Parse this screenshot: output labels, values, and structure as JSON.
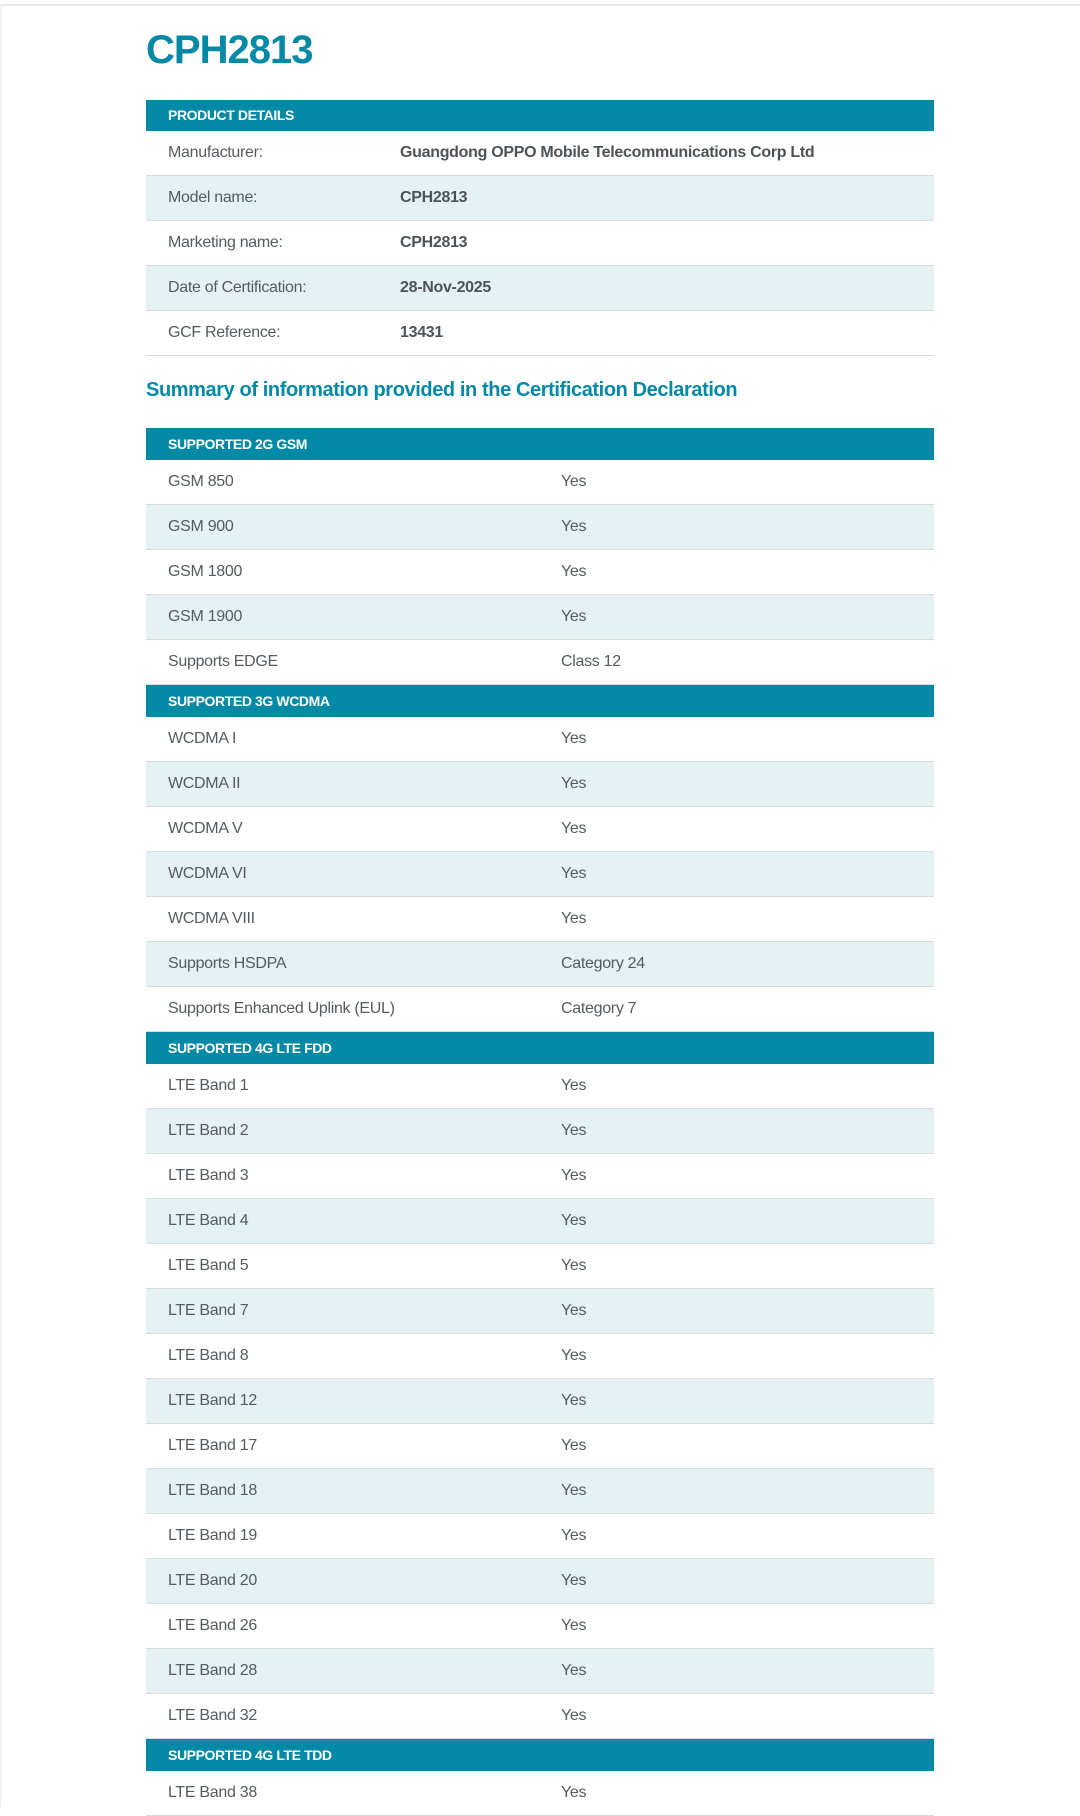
{
  "title": "CPH2813",
  "product_details": {
    "header": "PRODUCT DETAILS",
    "rows": [
      {
        "label": "Manufacturer:",
        "value": "Guangdong OPPO Mobile Telecommunications Corp Ltd"
      },
      {
        "label": "Model name:",
        "value": "CPH2813"
      },
      {
        "label": "Marketing name:",
        "value": "CPH2813"
      },
      {
        "label": "Date of Certification:",
        "value": "28-Nov-2025"
      },
      {
        "label": "GCF Reference:",
        "value": "13431"
      }
    ]
  },
  "summary_heading": "Summary of information provided in the Certification Declaration",
  "sections": [
    {
      "header": "SUPPORTED 2G GSM",
      "rows": [
        {
          "label": "GSM 850",
          "value": "Yes"
        },
        {
          "label": "GSM 900",
          "value": "Yes"
        },
        {
          "label": "GSM 1800",
          "value": "Yes"
        },
        {
          "label": "GSM 1900",
          "value": "Yes"
        },
        {
          "label": "Supports EDGE",
          "value": "Class 12"
        }
      ]
    },
    {
      "header": "SUPPORTED 3G WCDMA",
      "rows": [
        {
          "label": "WCDMA I",
          "value": "Yes"
        },
        {
          "label": "WCDMA II",
          "value": "Yes"
        },
        {
          "label": "WCDMA V",
          "value": "Yes"
        },
        {
          "label": "WCDMA VI",
          "value": "Yes"
        },
        {
          "label": "WCDMA VIII",
          "value": "Yes"
        },
        {
          "label": "Supports HSDPA",
          "value": "Category 24"
        },
        {
          "label": "Supports Enhanced Uplink (EUL)",
          "value": "Category 7"
        }
      ]
    },
    {
      "header": "SUPPORTED 4G LTE FDD",
      "rows": [
        {
          "label": "LTE Band 1",
          "value": "Yes"
        },
        {
          "label": "LTE Band 2",
          "value": "Yes"
        },
        {
          "label": "LTE Band 3",
          "value": "Yes"
        },
        {
          "label": "LTE Band 4",
          "value": "Yes"
        },
        {
          "label": "LTE Band 5",
          "value": "Yes"
        },
        {
          "label": "LTE Band 7",
          "value": "Yes"
        },
        {
          "label": "LTE Band 8",
          "value": "Yes"
        },
        {
          "label": "LTE Band 12",
          "value": "Yes"
        },
        {
          "label": "LTE Band 17",
          "value": "Yes"
        },
        {
          "label": "LTE Band 18",
          "value": "Yes"
        },
        {
          "label": "LTE Band 19",
          "value": "Yes"
        },
        {
          "label": "LTE Band 20",
          "value": "Yes"
        },
        {
          "label": "LTE Band 26",
          "value": "Yes"
        },
        {
          "label": "LTE Band 28",
          "value": "Yes"
        },
        {
          "label": "LTE Band 32",
          "value": "Yes"
        }
      ]
    },
    {
      "header": "SUPPORTED 4G LTE TDD",
      "rows": [
        {
          "label": "LTE Band 38",
          "value": "Yes"
        }
      ]
    }
  ],
  "colors": {
    "accent": "#0289a5",
    "row_alt": "#e4f2f4",
    "text": "#555b5e"
  }
}
